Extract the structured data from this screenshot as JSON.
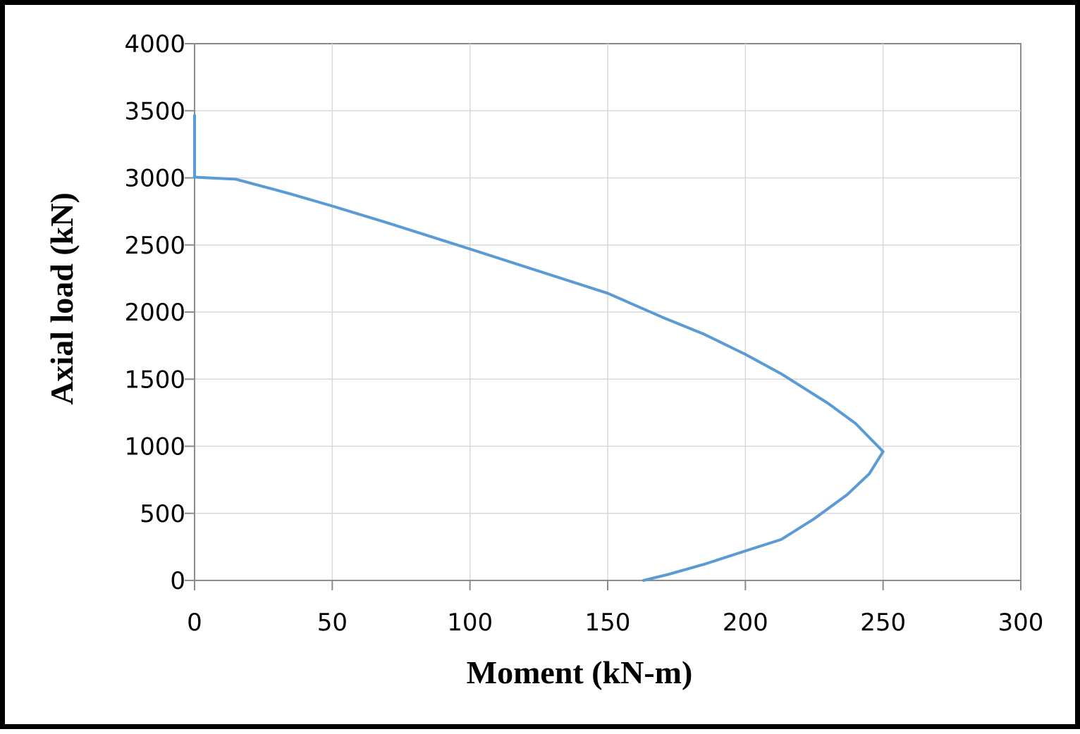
{
  "chart_data": {
    "type": "line",
    "title": "",
    "xlabel": "Moment (kN-m)",
    "ylabel": "Axial load (kN)",
    "xlim": [
      0,
      300
    ],
    "ylim": [
      0,
      4000
    ],
    "x_ticks": [
      0,
      50,
      100,
      150,
      200,
      250,
      300
    ],
    "y_ticks": [
      0,
      500,
      1000,
      1500,
      2000,
      2500,
      3000,
      3500,
      4000
    ],
    "grid": true,
    "legend": "none",
    "series": [
      {
        "color": "#5b9bd5",
        "points": [
          [
            0,
            3465
          ],
          [
            0,
            3005
          ],
          [
            15,
            2990
          ],
          [
            25,
            2935
          ],
          [
            35,
            2880
          ],
          [
            50,
            2790
          ],
          [
            70,
            2665
          ],
          [
            100,
            2470
          ],
          [
            125,
            2305
          ],
          [
            150,
            2140
          ],
          [
            170,
            1960
          ],
          [
            185,
            1835
          ],
          [
            200,
            1685
          ],
          [
            213,
            1540
          ],
          [
            230,
            1320
          ],
          [
            240,
            1170
          ],
          [
            250,
            960
          ],
          [
            245,
            795
          ],
          [
            237,
            640
          ],
          [
            225,
            460
          ],
          [
            213,
            305
          ],
          [
            200,
            220
          ],
          [
            185,
            120
          ],
          [
            172,
            45
          ],
          [
            163,
            0
          ]
        ]
      }
    ]
  }
}
